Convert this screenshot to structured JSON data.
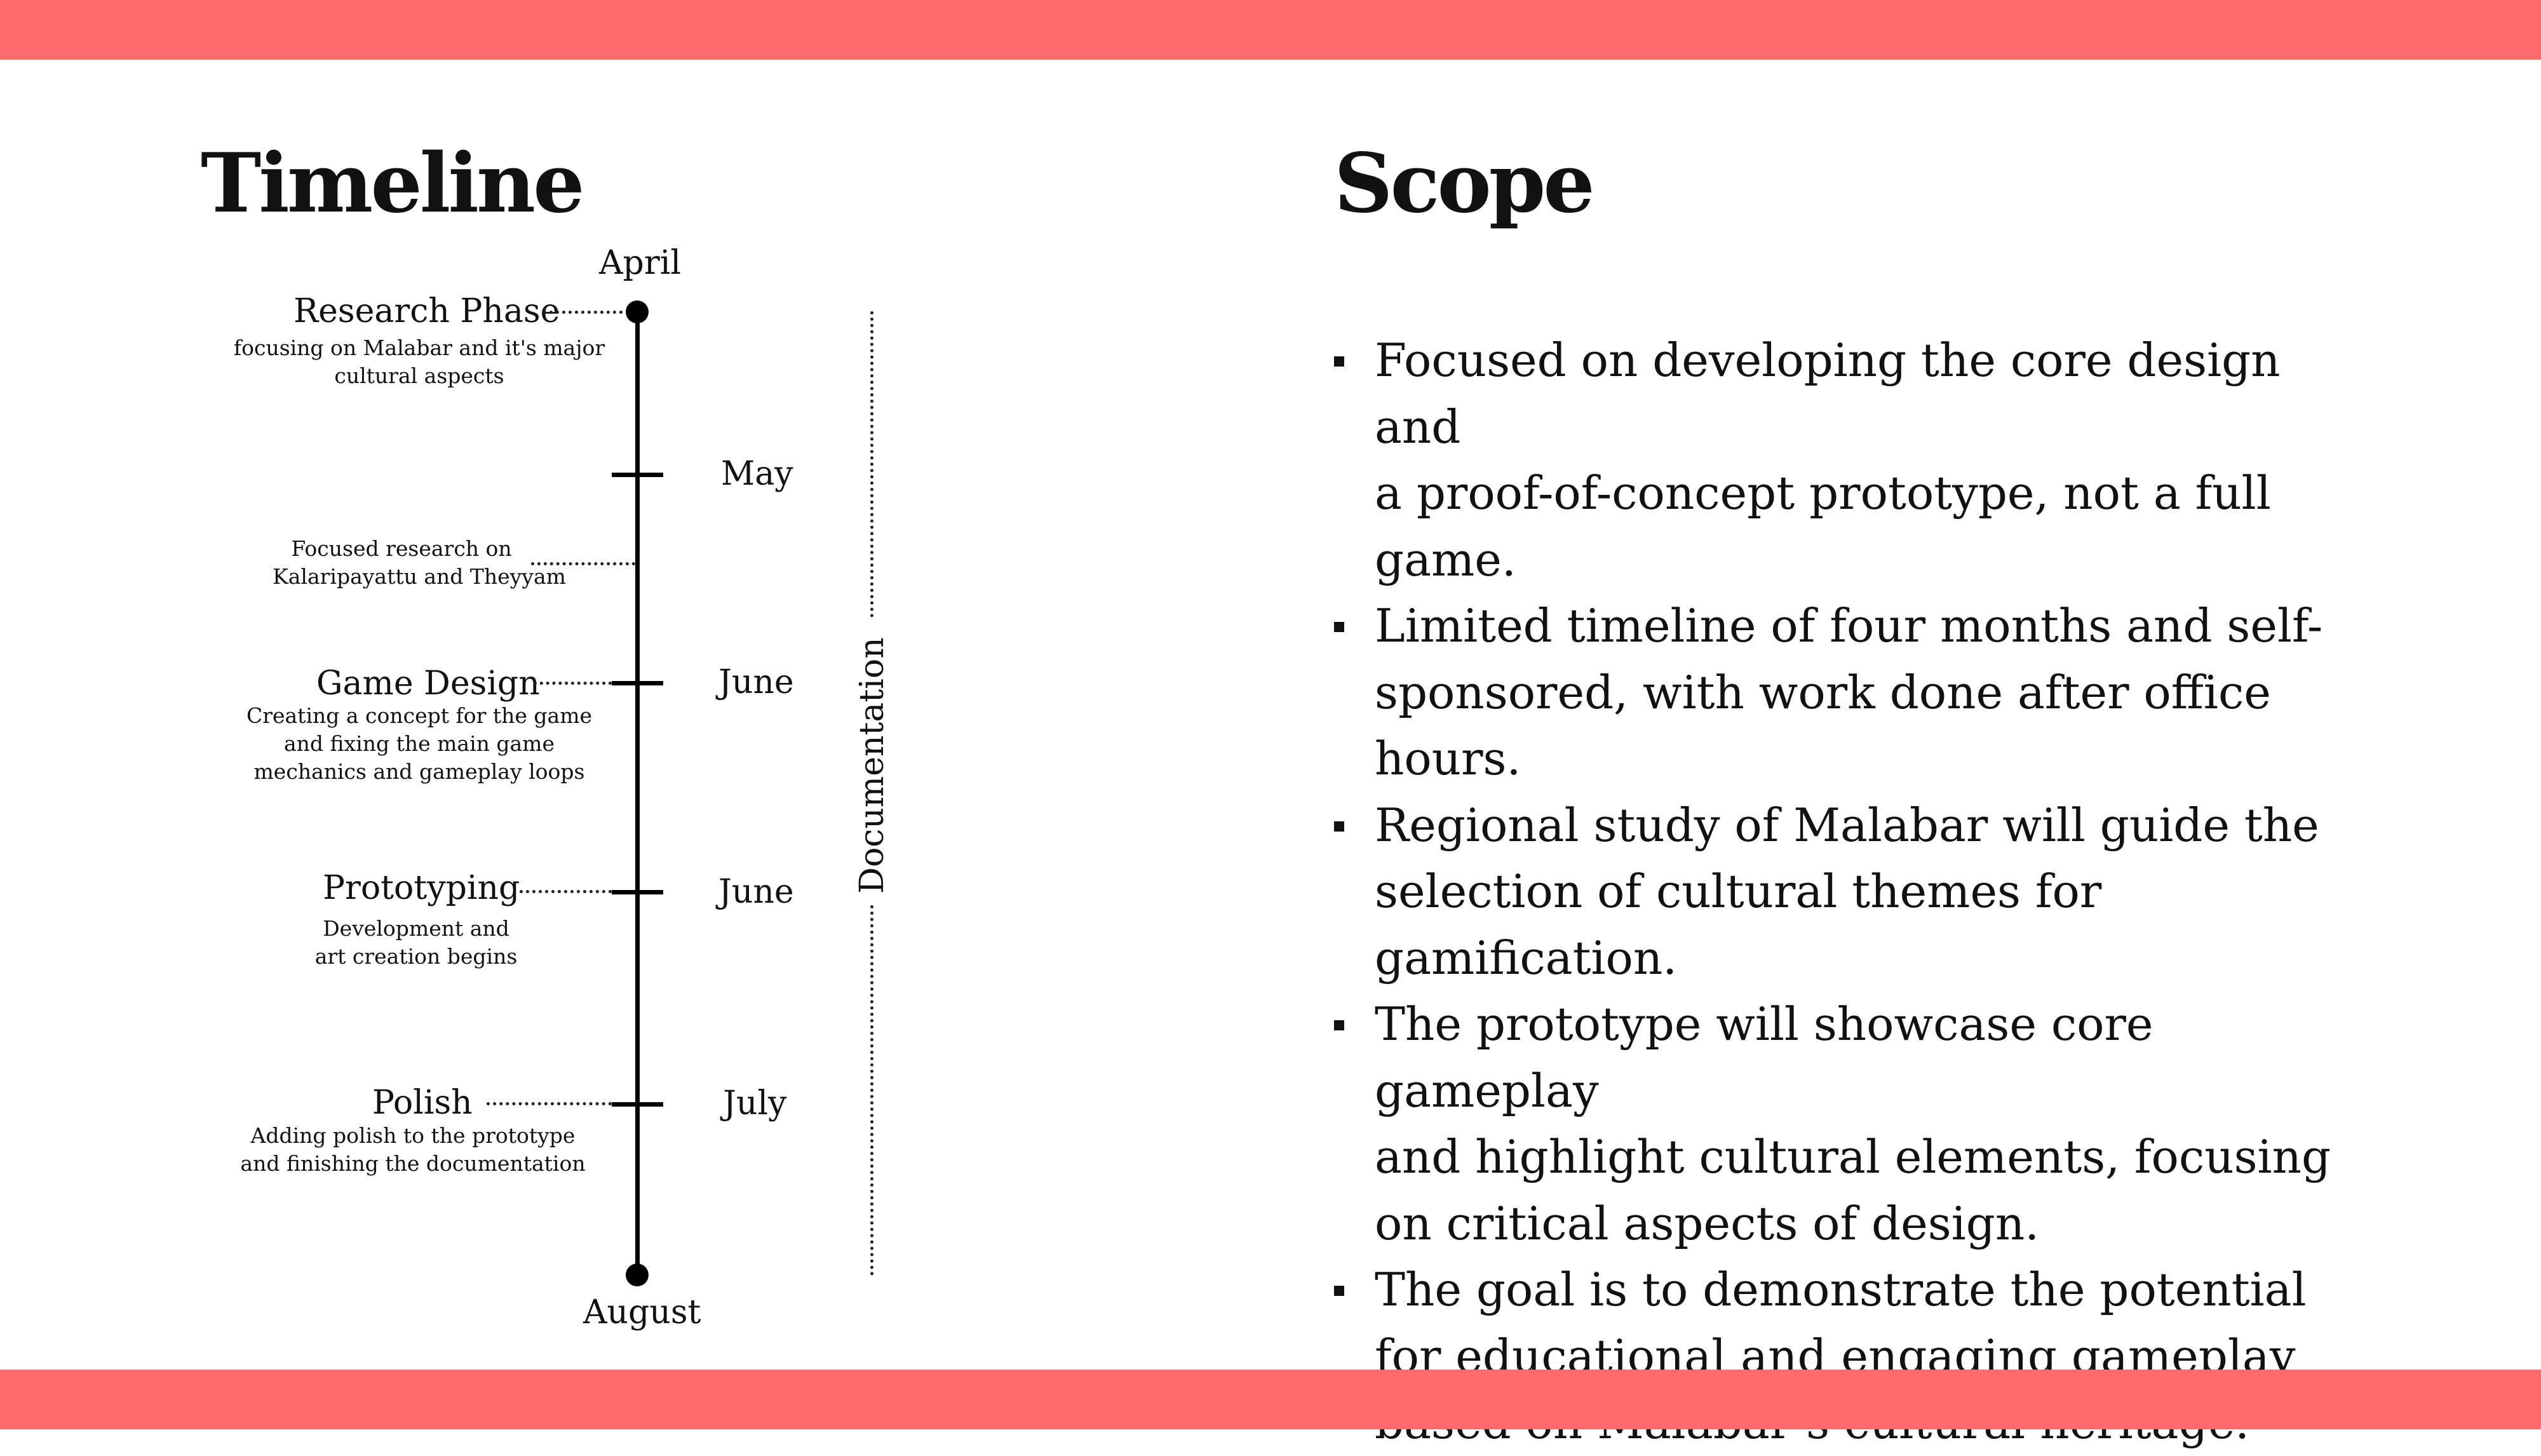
{
  "theme": {
    "accent": "#ff6b6b",
    "text": "#111111",
    "background": "#ffffff"
  },
  "timeline": {
    "heading": "Timeline",
    "start_month": "April",
    "end_month": "August",
    "tick_months": [
      "May",
      "June",
      "June",
      "July"
    ],
    "phases": [
      {
        "title": "Research Phase",
        "description": [
          "focusing on Malabar and it's major",
          "cultural aspects"
        ]
      },
      {
        "title": "",
        "description": [
          "Focused research on",
          "Kalaripayattu and Theyyam"
        ]
      },
      {
        "title": "Game Design",
        "description": [
          "Creating a concept for the game",
          "and fixing the main game",
          "mechanics and gameplay loops"
        ]
      },
      {
        "title": "Prototyping",
        "description": [
          "Development and",
          "art creation begins"
        ]
      },
      {
        "title": "Polish",
        "description": [
          "Adding polish to the prototype",
          "and finishing the documentation"
        ]
      }
    ],
    "side_label": "Documentation"
  },
  "scope": {
    "heading": "Scope",
    "items": [
      [
        "Focused on developing the core design and",
        "a proof-of-concept prototype, not a full game."
      ],
      [
        "Limited timeline of four months and self-",
        "sponsored, with work done after office",
        "hours."
      ],
      [
        "Regional study of Malabar will guide the",
        "selection of cultural themes for gamification."
      ],
      [
        "The prototype will showcase core gameplay",
        "and highlight cultural elements, focusing",
        "on critical aspects of design."
      ],
      [
        "The goal is to demonstrate the potential",
        "for educational and engaging gameplay",
        "based on Malabar’s cultural heritage."
      ]
    ]
  }
}
